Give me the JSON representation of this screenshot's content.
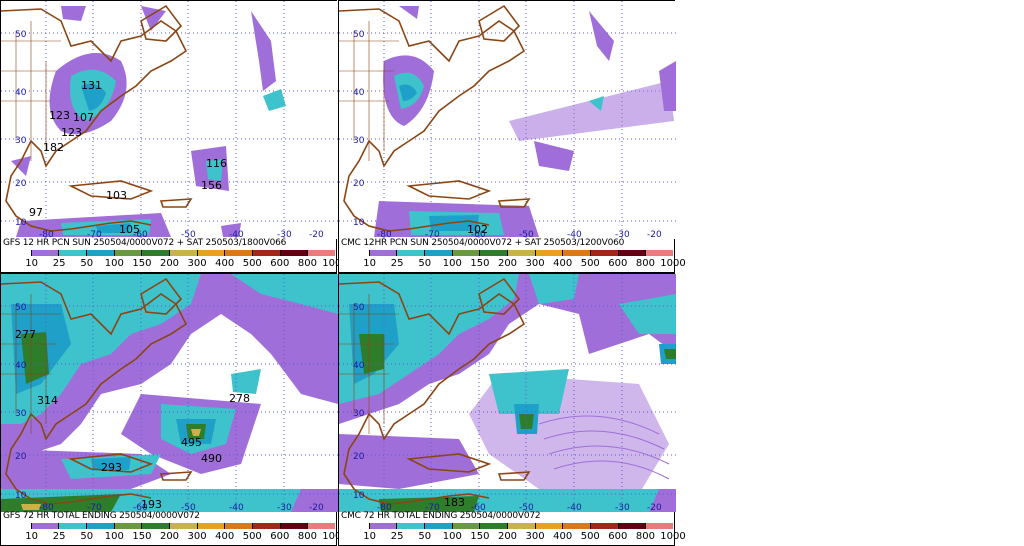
{
  "panels": [
    {
      "title": "GFS 12 HR PCN SUN 250504/0000V072 + SAT 250503/1800V066",
      "lat_labels": [
        "50",
        "40",
        "30",
        "20",
        "10"
      ],
      "lon_labels": [
        "-80",
        "-70",
        "-60",
        "-50",
        "-40",
        "-30",
        "-20"
      ],
      "values": [
        "131",
        "123",
        "107",
        "123",
        "182",
        "116",
        "156",
        "103",
        "97",
        "105"
      ]
    },
    {
      "title": "CMC 12HR PCN SUN 250504/0000V072 + SAT 250503/1200V060",
      "lat_labels": [
        "50",
        "40",
        "30",
        "20",
        "10"
      ],
      "lon_labels": [
        "-80",
        "-70",
        "-60",
        "-50",
        "-40",
        "-30",
        "-20"
      ],
      "values": [
        "102"
      ]
    },
    {
      "title": "GFS 72 HR TOTAL ENDING 250504/0000V072",
      "lat_labels": [
        "50",
        "40",
        "30",
        "20",
        "10"
      ],
      "lon_labels": [
        "-80",
        "-70",
        "-60",
        "-50",
        "-40",
        "-30",
        "-20"
      ],
      "values": [
        "277",
        "314",
        "278",
        "495",
        "490",
        "293",
        "193"
      ]
    },
    {
      "title": "CMC 72 HR TOTAL ENDING 250504/0000V072",
      "lat_labels": [
        "50",
        "40",
        "30",
        "20",
        "10"
      ],
      "lon_labels": [
        "-80",
        "-70",
        "-60",
        "-50",
        "-40",
        "-30",
        "-20"
      ],
      "values": [
        "183"
      ]
    }
  ],
  "colorbar": {
    "labels": [
      "10",
      "25",
      "50",
      "100",
      "150",
      "200",
      "300",
      "400",
      "500",
      "600",
      "800",
      "1000"
    ],
    "colors": [
      "#ffffff",
      "#a06ed8",
      "#3ec3cc",
      "#1fa0c8",
      "#6a9a3e",
      "#2e7d2a",
      "#c9b24a",
      "#e8a020",
      "#d97a1a",
      "#a02818",
      "#600010",
      "#e87b7b"
    ]
  }
}
